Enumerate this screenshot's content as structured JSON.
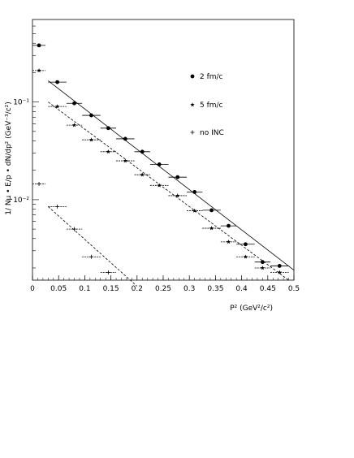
{
  "chart_data": {
    "type": "scatter",
    "xlabel": "P² (GeV²/c²)",
    "ylabel": "1/ Nμ • E/p • dN/dp² (GeV⁻³/c²)",
    "xlim": [
      0,
      0.5
    ],
    "ylim": [
      0.0015,
      0.7
    ],
    "yscale": "log",
    "x_ticks": [
      0,
      0.05,
      0.1,
      0.15,
      0.2,
      0.25,
      0.3,
      0.35,
      0.4,
      0.45,
      0.5
    ],
    "x_tick_labels": [
      "0",
      "0.05",
      "0.1",
      "0.15",
      "0.2",
      "0.25",
      "0.3",
      "0.35",
      "0.4",
      "0.45",
      "0.5"
    ],
    "y_ticks": [
      0.01,
      0.1
    ],
    "y_tick_labels": [
      "10⁻²",
      "10⁻¹"
    ],
    "grid": false,
    "legend_position": "top-right",
    "series": [
      {
        "name": "2 fm/c",
        "marker": "circle",
        "x": [
          0.0125,
          0.0475,
          0.08,
          0.1125,
          0.145,
          0.1775,
          0.21,
          0.2425,
          0.2775,
          0.31,
          0.3425,
          0.375,
          0.4075,
          0.44,
          0.4725
        ],
        "xerr": [
          0.0125,
          0.0175,
          0.015,
          0.0175,
          0.015,
          0.0175,
          0.015,
          0.0175,
          0.0175,
          0.015,
          0.0175,
          0.015,
          0.0175,
          0.015,
          0.0175
        ],
        "y": [
          0.38,
          0.16,
          0.097,
          0.073,
          0.054,
          0.042,
          0.031,
          0.023,
          0.017,
          0.012,
          0.0078,
          0.0054,
          0.0035,
          0.0023,
          0.0021
        ],
        "fit_line": [
          [
            0.03,
            0.165
          ],
          [
            0.5,
            0.0019
          ]
        ]
      },
      {
        "name": "5 fm/c",
        "marker": "star",
        "x": [
          0.0125,
          0.0475,
          0.08,
          0.1125,
          0.145,
          0.1775,
          0.21,
          0.2425,
          0.2775,
          0.31,
          0.3425,
          0.375,
          0.4075,
          0.44,
          0.4725
        ],
        "xerr": [
          0.0125,
          0.0175,
          0.015,
          0.0175,
          0.015,
          0.0175,
          0.015,
          0.0175,
          0.0175,
          0.015,
          0.0175,
          0.015,
          0.0175,
          0.015,
          0.0175
        ],
        "y": [
          0.21,
          0.09,
          0.058,
          0.041,
          0.031,
          0.025,
          0.018,
          0.014,
          0.011,
          0.0077,
          0.0051,
          0.0037,
          0.0026,
          0.002,
          0.0018
        ],
        "fit_line": [
          [
            0.03,
            0.1
          ],
          [
            0.49,
            0.0015
          ]
        ]
      },
      {
        "name": "no INC",
        "marker": "plus",
        "x": [
          0.0125,
          0.0475,
          0.08,
          0.1125,
          0.145
        ],
        "xerr": [
          0.0125,
          0.0175,
          0.015,
          0.0175,
          0.015
        ],
        "y": [
          0.0145,
          0.0085,
          0.005,
          0.0026,
          0.0018
        ],
        "fit_line": [
          [
            0.03,
            0.0085
          ],
          [
            0.2,
            0.0013
          ]
        ]
      }
    ]
  }
}
